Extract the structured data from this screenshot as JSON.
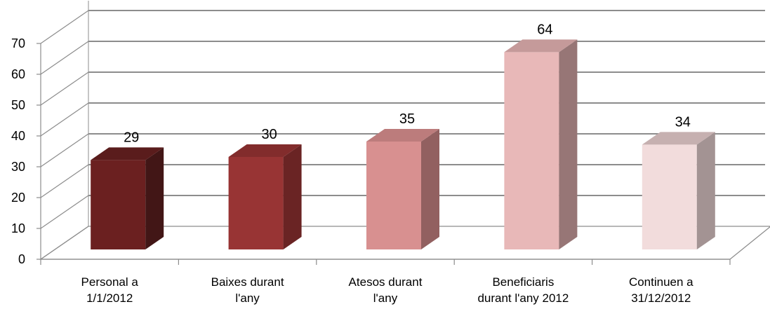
{
  "chart_data": {
    "type": "bar",
    "title": "",
    "xlabel": "",
    "ylabel": "",
    "categories": [
      [
        "Personal a",
        "1/1/2012"
      ],
      [
        "Baixes durant",
        "l'any"
      ],
      [
        "Atesos durant",
        "l'any"
      ],
      [
        "Beneficiaris",
        "durant l'any 2012"
      ],
      [
        "Continuen a",
        "31/12/2012"
      ]
    ],
    "values": [
      29,
      30,
      35,
      64,
      34
    ],
    "data_labels": [
      "29",
      "30",
      "35",
      "64",
      "34"
    ],
    "ylim": [
      0,
      70
    ],
    "yticks": [
      0,
      10,
      20,
      30,
      40,
      50,
      60,
      70
    ],
    "grid": true,
    "legend": "none",
    "colors": [
      "#6b2020",
      "#983434",
      "#d89090",
      "#e8b8b8",
      "#f2dcdc"
    ],
    "side_colors": [
      "#421616",
      "#6a2424",
      "#926060",
      "#977676",
      "#a39393"
    ],
    "top_colors": [
      "#5a1c1c",
      "#822c2c",
      "#bc7c7c",
      "#c59a9a",
      "#c6b0b0"
    ],
    "gridline_color": "#8c8c8c"
  }
}
